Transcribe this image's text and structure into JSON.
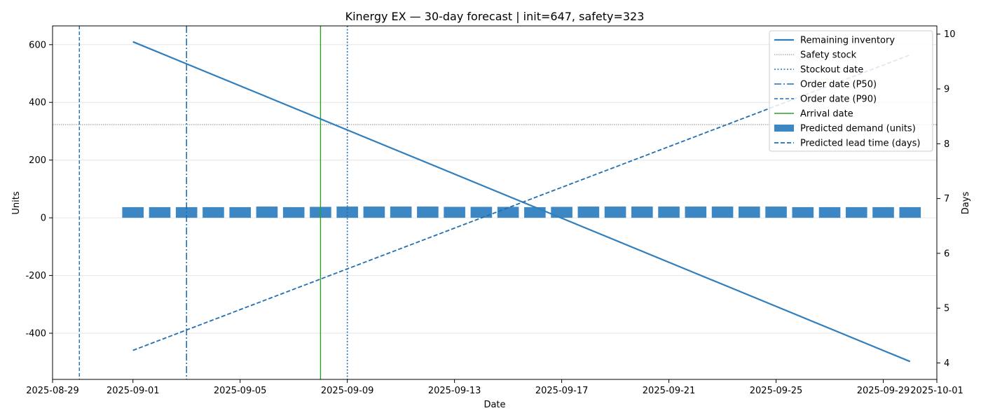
{
  "colors": {
    "inventory": "#2f7fbf",
    "demand": "#3d88c4",
    "safety": "#888888",
    "stockout": "#1f6fb2",
    "order_p50": "#1f6fb2",
    "order_p90": "#1f6fb2",
    "arrival": "#2ca02c",
    "lead": "#1f6fb2",
    "grid": "#e6e6e6"
  },
  "chart_data": {
    "type": "bar",
    "title": "Kinergy EX — 30-day forecast | init=647, safety=323",
    "xlabel": "Date",
    "ylabel": "Units",
    "ylabel_right": "Days",
    "xlim": [
      "2025-08-29",
      "2025-10-01"
    ],
    "ylim": [
      -560,
      665
    ],
    "ylim_right": [
      3.7,
      10.15
    ],
    "x_ticks": [
      "2025-08-29",
      "2025-09-01",
      "2025-09-05",
      "2025-09-09",
      "2025-09-13",
      "2025-09-17",
      "2025-09-21",
      "2025-09-25",
      "2025-09-29",
      "2025-10-01"
    ],
    "y_ticks": [
      -400,
      -200,
      0,
      200,
      400,
      600
    ],
    "y_ticks_right": [
      4,
      5,
      6,
      7,
      8,
      9,
      10
    ],
    "grid": "horizontal",
    "legend_position": "top-right",
    "dates": [
      "2025-09-01",
      "2025-09-02",
      "2025-09-03",
      "2025-09-04",
      "2025-09-05",
      "2025-09-06",
      "2025-09-07",
      "2025-09-08",
      "2025-09-09",
      "2025-09-10",
      "2025-09-11",
      "2025-09-12",
      "2025-09-13",
      "2025-09-14",
      "2025-09-15",
      "2025-09-16",
      "2025-09-17",
      "2025-09-18",
      "2025-09-19",
      "2025-09-20",
      "2025-09-21",
      "2025-09-22",
      "2025-09-23",
      "2025-09-24",
      "2025-09-25",
      "2025-09-26",
      "2025-09-27",
      "2025-09-28",
      "2025-09-29",
      "2025-09-30"
    ],
    "series": [
      {
        "name": "Predicted demand (units)",
        "axis": "left",
        "type": "bar",
        "values": [
          37,
          37,
          37,
          37,
          37,
          39,
          37,
          38,
          39,
          39,
          39,
          39,
          38,
          38,
          38,
          37,
          38,
          39,
          39,
          39,
          39,
          39,
          39,
          39,
          39,
          37,
          37,
          37,
          37,
          37
        ]
      },
      {
        "name": "Remaining inventory",
        "axis": "left",
        "type": "line",
        "x": [
          "2025-09-01",
          "2025-09-30"
        ],
        "values": [
          610,
          -498
        ]
      },
      {
        "name": "Predicted lead time (days)",
        "axis": "right",
        "type": "line",
        "x": [
          "2025-09-01",
          "2025-09-30"
        ],
        "values": [
          4.23,
          9.62
        ]
      }
    ],
    "reference_lines": [
      {
        "name": "Safety stock",
        "orientation": "horizontal",
        "value": 323
      },
      {
        "name": "Stockout date",
        "orientation": "vertical",
        "date": "2025-09-09"
      },
      {
        "name": "Order date (P50)",
        "orientation": "vertical",
        "date": "2025-09-03"
      },
      {
        "name": "Order date (P90)",
        "orientation": "vertical",
        "date": "2025-08-30"
      },
      {
        "name": "Arrival date",
        "orientation": "vertical",
        "date": "2025-09-08"
      }
    ],
    "legend": [
      "Remaining inventory",
      "Safety stock",
      "Stockout date",
      "Order date (P50)",
      "Order date (P90)",
      "Arrival date",
      "Predicted demand (units)",
      "Predicted lead time (days)"
    ]
  }
}
